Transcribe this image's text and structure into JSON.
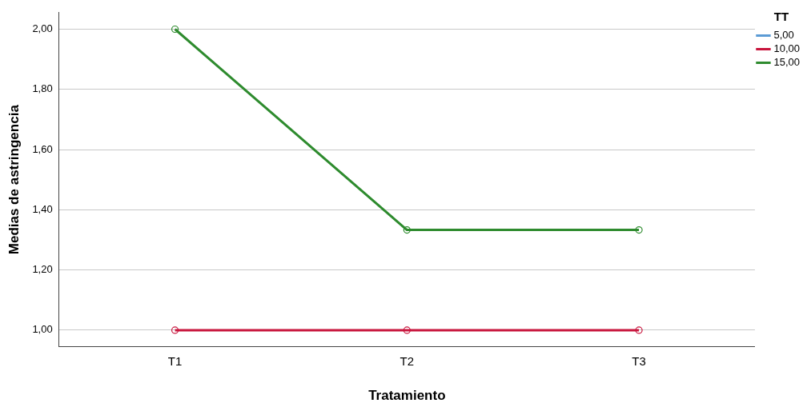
{
  "chart_data": {
    "type": "line",
    "xlabel": "Tratamiento",
    "ylabel": "Medias de astringencia",
    "legend_title": "TT",
    "categories": [
      "T1",
      "T2",
      "T3"
    ],
    "series": [
      {
        "name": "5,00",
        "color": "#5b9bd5",
        "values": [
          null,
          null,
          null
        ]
      },
      {
        "name": "10,00",
        "color": "#c8143c",
        "values": [
          1.0,
          1.0,
          1.0
        ]
      },
      {
        "name": "15,00",
        "color": "#2e8b2e",
        "values": [
          2.0,
          1.333,
          1.333
        ]
      }
    ],
    "ylim": [
      0.945,
      2.055
    ],
    "yticks": [
      {
        "value": 1.0,
        "label": "1,00"
      },
      {
        "value": 1.2,
        "label": "1,20"
      },
      {
        "value": 1.4,
        "label": "1,40"
      },
      {
        "value": 1.6,
        "label": "1,60"
      },
      {
        "value": 1.8,
        "label": "1,80"
      },
      {
        "value": 2.0,
        "label": "2,00"
      }
    ],
    "grid": "y",
    "legend": "top right",
    "marker": "circle",
    "line_style": "solid"
  }
}
